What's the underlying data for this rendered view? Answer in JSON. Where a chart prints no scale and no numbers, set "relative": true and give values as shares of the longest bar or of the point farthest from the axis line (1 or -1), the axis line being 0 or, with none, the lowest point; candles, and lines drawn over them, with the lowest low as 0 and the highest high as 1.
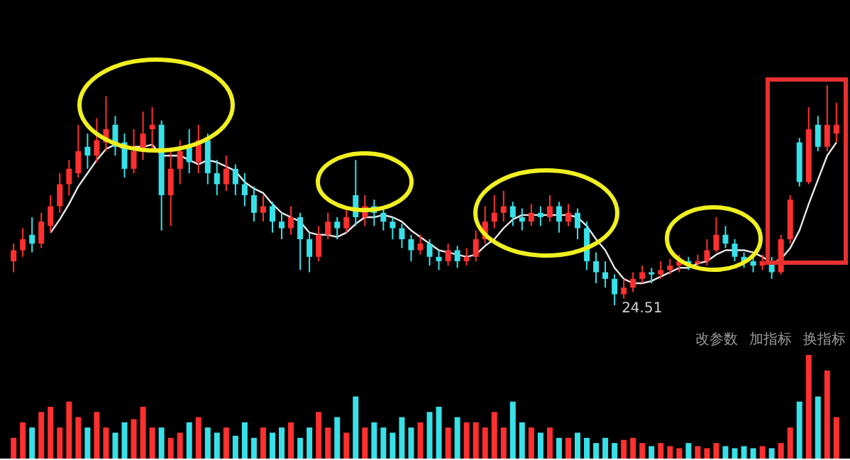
{
  "chart_data": [
    {
      "type": "candlestick",
      "relative": true,
      "categories": [
        null,
        null,
        null,
        null,
        null,
        null,
        null,
        null,
        null,
        null,
        null,
        null,
        null,
        null,
        null,
        null,
        null,
        null,
        null,
        null,
        null,
        null,
        null,
        null,
        null,
        null,
        null,
        null,
        null,
        null,
        null,
        null,
        null,
        null,
        null,
        null,
        null,
        null,
        null,
        null,
        null,
        null,
        null,
        null,
        null,
        null,
        null,
        null,
        null,
        null,
        null,
        null,
        null,
        null,
        null,
        null,
        null,
        null,
        null,
        null,
        null,
        null,
        null,
        null,
        null,
        null,
        null,
        null,
        null,
        null,
        null,
        null,
        null,
        null,
        null,
        null,
        null,
        null,
        null,
        null,
        null,
        null,
        null,
        null,
        null,
        null,
        null,
        null,
        null,
        null
      ],
      "ohlc": [
        [
          0.2,
          0.28,
          0.15,
          0.25
        ],
        [
          0.25,
          0.35,
          0.22,
          0.3
        ],
        [
          0.32,
          0.4,
          0.24,
          0.28
        ],
        [
          0.28,
          0.42,
          0.26,
          0.38
        ],
        [
          0.36,
          0.5,
          0.33,
          0.45
        ],
        [
          0.45,
          0.6,
          0.42,
          0.55
        ],
        [
          0.55,
          0.66,
          0.5,
          0.62
        ],
        [
          0.6,
          0.82,
          0.58,
          0.7
        ],
        [
          0.72,
          0.78,
          0.62,
          0.68
        ],
        [
          0.68,
          0.85,
          0.65,
          0.75
        ],
        [
          0.74,
          0.95,
          0.7,
          0.8
        ],
        [
          0.82,
          0.86,
          0.68,
          0.72
        ],
        [
          0.74,
          0.78,
          0.58,
          0.62
        ],
        [
          0.62,
          0.8,
          0.6,
          0.7
        ],
        [
          0.7,
          0.88,
          0.66,
          0.78
        ],
        [
          0.8,
          0.9,
          0.7,
          0.82
        ],
        [
          0.82,
          0.84,
          0.34,
          0.5
        ],
        [
          0.5,
          0.7,
          0.36,
          0.62
        ],
        [
          0.62,
          0.75,
          0.55,
          0.7
        ],
        [
          0.72,
          0.8,
          0.6,
          0.65
        ],
        [
          0.65,
          0.82,
          0.6,
          0.75
        ],
        [
          0.75,
          0.78,
          0.55,
          0.6
        ],
        [
          0.6,
          0.66,
          0.5,
          0.55
        ],
        [
          0.55,
          0.68,
          0.52,
          0.62
        ],
        [
          0.62,
          0.64,
          0.5,
          0.55
        ],
        [
          0.55,
          0.6,
          0.45,
          0.5
        ],
        [
          0.5,
          0.54,
          0.38,
          0.42
        ],
        [
          0.42,
          0.5,
          0.38,
          0.45
        ],
        [
          0.45,
          0.47,
          0.33,
          0.38
        ],
        [
          0.38,
          0.42,
          0.3,
          0.35
        ],
        [
          0.35,
          0.45,
          0.32,
          0.4
        ],
        [
          0.4,
          0.42,
          0.16,
          0.3
        ],
        [
          0.3,
          0.33,
          0.15,
          0.22
        ],
        [
          0.22,
          0.36,
          0.2,
          0.32
        ],
        [
          0.32,
          0.42,
          0.3,
          0.38
        ],
        [
          0.38,
          0.4,
          0.3,
          0.35
        ],
        [
          0.35,
          0.44,
          0.33,
          0.4
        ],
        [
          0.5,
          0.66,
          0.36,
          0.4
        ],
        [
          0.4,
          0.5,
          0.36,
          0.45
        ],
        [
          0.45,
          0.48,
          0.36,
          0.42
        ],
        [
          0.42,
          0.45,
          0.34,
          0.38
        ],
        [
          0.38,
          0.4,
          0.3,
          0.35
        ],
        [
          0.35,
          0.37,
          0.26,
          0.3
        ],
        [
          0.3,
          0.32,
          0.2,
          0.25
        ],
        [
          0.25,
          0.32,
          0.23,
          0.28
        ],
        [
          0.28,
          0.3,
          0.18,
          0.22
        ],
        [
          0.22,
          0.25,
          0.16,
          0.2
        ],
        [
          0.2,
          0.28,
          0.18,
          0.25
        ],
        [
          0.25,
          0.27,
          0.17,
          0.2
        ],
        [
          0.2,
          0.26,
          0.18,
          0.22
        ],
        [
          0.22,
          0.34,
          0.2,
          0.3
        ],
        [
          0.3,
          0.45,
          0.28,
          0.38
        ],
        [
          0.38,
          0.5,
          0.35,
          0.42
        ],
        [
          0.42,
          0.52,
          0.38,
          0.45
        ],
        [
          0.45,
          0.47,
          0.36,
          0.4
        ],
        [
          0.4,
          0.44,
          0.34,
          0.38
        ],
        [
          0.38,
          0.46,
          0.36,
          0.42
        ],
        [
          0.42,
          0.45,
          0.36,
          0.4
        ],
        [
          0.4,
          0.5,
          0.38,
          0.45
        ],
        [
          0.45,
          0.47,
          0.33,
          0.38
        ],
        [
          0.38,
          0.46,
          0.36,
          0.42
        ],
        [
          0.42,
          0.44,
          0.3,
          0.35
        ],
        [
          0.35,
          0.38,
          0.16,
          0.2
        ],
        [
          0.2,
          0.24,
          0.1,
          0.15
        ],
        [
          0.15,
          0.2,
          0.08,
          0.12
        ],
        [
          0.12,
          0.14,
          0,
          0.05
        ],
        [
          0.05,
          0.12,
          0.03,
          0.08
        ],
        [
          0.08,
          0.15,
          0.06,
          0.12
        ],
        [
          0.12,
          0.18,
          0.1,
          0.15
        ],
        [
          0.15,
          0.17,
          0.1,
          0.14
        ],
        [
          0.14,
          0.2,
          0.12,
          0.16
        ],
        [
          0.16,
          0.21,
          0.14,
          0.18
        ],
        [
          0.18,
          0.23,
          0.15,
          0.2
        ],
        [
          0.2,
          0.22,
          0.16,
          0.19
        ],
        [
          0.19,
          0.23,
          0.17,
          0.2
        ],
        [
          0.2,
          0.3,
          0.18,
          0.25
        ],
        [
          0.25,
          0.4,
          0.24,
          0.32
        ],
        [
          0.32,
          0.36,
          0.26,
          0.28
        ],
        [
          0.28,
          0.3,
          0.2,
          0.22
        ],
        [
          0.22,
          0.24,
          0.17,
          0.2
        ],
        [
          0.2,
          0.22,
          0.15,
          0.18
        ],
        [
          0.18,
          0.23,
          0.16,
          0.2
        ],
        [
          0.2,
          0.22,
          0.12,
          0.15
        ],
        [
          0.15,
          0.32,
          0.14,
          0.3
        ],
        [
          0.3,
          0.5,
          0.28,
          0.48
        ],
        [
          0.74,
          0.76,
          0.54,
          0.56
        ],
        [
          0.56,
          0.9,
          0.55,
          0.8
        ],
        [
          0.82,
          0.86,
          0.7,
          0.72
        ],
        [
          0.72,
          1.0,
          0.7,
          0.82
        ],
        [
          0.78,
          0.92,
          0.74,
          0.82
        ]
      ],
      "colors": [
        "#ff3030",
        "#ff3030",
        "#38e0e8",
        "#ff3030",
        "#ff3030",
        "#ff3030",
        "#ff3030",
        "#ff3030",
        "#38e0e8",
        "#ff3030",
        "#ff3030",
        "#38e0e8",
        "#38e0e8",
        "#ff3030",
        "#ff3030",
        "#ff3030",
        "#38e0e8",
        "#ff3030",
        "#ff3030",
        "#38e0e8",
        "#ff3030",
        "#38e0e8",
        "#38e0e8",
        "#ff3030",
        "#38e0e8",
        "#38e0e8",
        "#38e0e8",
        "#ff3030",
        "#38e0e8",
        "#38e0e8",
        "#ff3030",
        "#38e0e8",
        "#38e0e8",
        "#ff3030",
        "#ff3030",
        "#38e0e8",
        "#ff3030",
        "#38e0e8",
        "#ff3030",
        "#38e0e8",
        "#38e0e8",
        "#38e0e8",
        "#38e0e8",
        "#38e0e8",
        "#ff3030",
        "#38e0e8",
        "#38e0e8",
        "#ff3030",
        "#38e0e8",
        "#ff3030",
        "#ff3030",
        "#ff3030",
        "#ff3030",
        "#ff3030",
        "#38e0e8",
        "#38e0e8",
        "#ff3030",
        "#38e0e8",
        "#ff3030",
        "#38e0e8",
        "#ff3030",
        "#38e0e8",
        "#38e0e8",
        "#38e0e8",
        "#38e0e8",
        "#38e0e8",
        "#ff3030",
        "#ff3030",
        "#ff3030",
        "#38e0e8",
        "#ff3030",
        "#ff3030",
        "#ff3030",
        "#38e0e8",
        "#ff3030",
        "#ff3030",
        "#ff3030",
        "#38e0e8",
        "#38e0e8",
        "#38e0e8",
        "#38e0e8",
        "#ff3030",
        "#38e0e8",
        "#ff3030",
        "#ff3030",
        "#38e0e8",
        "#ff3030",
        "#38e0e8",
        "#ff3030",
        "#ff3030"
      ],
      "series": [
        {
          "type": "line",
          "color": "#e8e8e8",
          "values": [
            null,
            null,
            null,
            null,
            0.33,
            0.39,
            0.46,
            0.54,
            0.6,
            0.66,
            0.71,
            0.73,
            0.71,
            0.72,
            0.72,
            0.73,
            0.68,
            0.68,
            0.68,
            0.66,
            0.64,
            0.66,
            0.65,
            0.63,
            0.61,
            0.56,
            0.53,
            0.51,
            0.46,
            0.42,
            0.4,
            0.38,
            0.33,
            0.32,
            0.32,
            0.31,
            0.33,
            0.37,
            0.4,
            0.4,
            0.41,
            0.4,
            0.38,
            0.34,
            0.31,
            0.28,
            0.25,
            0.24,
            0.23,
            0.22,
            0.23,
            0.27,
            0.3,
            0.35,
            0.39,
            0.41,
            0.41,
            0.41,
            0.41,
            0.41,
            0.41,
            0.4,
            0.36,
            0.3,
            0.25,
            0.17,
            0.12,
            0.1,
            0.1,
            0.11,
            0.13,
            0.15,
            0.17,
            0.17,
            0.19,
            0.2,
            0.23,
            0.25,
            0.25,
            0.25,
            0.24,
            0.22,
            0.19,
            0.21,
            0.26,
            0.34,
            0.46,
            0.57,
            0.68,
            0.74
          ]
        }
      ],
      "annotations": [
        "24.51"
      ]
    },
    {
      "type": "bar",
      "relative": true,
      "categories": [
        null,
        null,
        null,
        null,
        null,
        null,
        null,
        null,
        null,
        null,
        null,
        null,
        null,
        null,
        null,
        null,
        null,
        null,
        null,
        null,
        null,
        null,
        null,
        null,
        null,
        null,
        null,
        null,
        null,
        null,
        null,
        null,
        null,
        null,
        null,
        null,
        null,
        null,
        null,
        null,
        null,
        null,
        null,
        null,
        null,
        null,
        null,
        null,
        null,
        null,
        null,
        null,
        null,
        null,
        null,
        null,
        null,
        null,
        null,
        null,
        null,
        null,
        null,
        null,
        null,
        null,
        null,
        null,
        null,
        null,
        null,
        null,
        null,
        null,
        null,
        null,
        null,
        null,
        null,
        null,
        null,
        null,
        null,
        null,
        null,
        null,
        null,
        null,
        null,
        null
      ],
      "values": [
        0.2,
        0.35,
        0.3,
        0.45,
        0.5,
        0.3,
        0.55,
        0.4,
        0.3,
        0.45,
        0.3,
        0.25,
        0.35,
        0.38,
        0.5,
        0.3,
        0.3,
        0.2,
        0.25,
        0.35,
        0.4,
        0.3,
        0.25,
        0.3,
        0.22,
        0.35,
        0.2,
        0.3,
        0.25,
        0.3,
        0.35,
        0.2,
        0.3,
        0.45,
        0.3,
        0.4,
        0.25,
        0.6,
        0.3,
        0.35,
        0.3,
        0.25,
        0.4,
        0.3,
        0.35,
        0.45,
        0.5,
        0.3,
        0.4,
        0.35,
        0.35,
        0.3,
        0.45,
        0.3,
        0.55,
        0.35,
        0.3,
        0.25,
        0.3,
        0.2,
        0.2,
        0.25,
        0.2,
        0.15,
        0.2,
        0.15,
        0.18,
        0.2,
        0.15,
        0.12,
        0.15,
        0.12,
        0.1,
        0.15,
        0.12,
        0.1,
        0.15,
        0.12,
        0.1,
        0.12,
        0.1,
        0.12,
        0.1,
        0.15,
        0.3,
        0.55,
        1.0,
        0.6,
        0.85,
        0.4
      ],
      "colors": [
        "#ff3030",
        "#ff3030",
        "#38e0e8",
        "#ff3030",
        "#ff3030",
        "#ff3030",
        "#ff3030",
        "#ff3030",
        "#38e0e8",
        "#ff3030",
        "#ff3030",
        "#38e0e8",
        "#38e0e8",
        "#ff3030",
        "#ff3030",
        "#ff3030",
        "#38e0e8",
        "#ff3030",
        "#ff3030",
        "#38e0e8",
        "#ff3030",
        "#38e0e8",
        "#38e0e8",
        "#ff3030",
        "#38e0e8",
        "#38e0e8",
        "#38e0e8",
        "#ff3030",
        "#38e0e8",
        "#38e0e8",
        "#ff3030",
        "#38e0e8",
        "#38e0e8",
        "#ff3030",
        "#ff3030",
        "#38e0e8",
        "#ff3030",
        "#38e0e8",
        "#ff3030",
        "#38e0e8",
        "#38e0e8",
        "#38e0e8",
        "#38e0e8",
        "#38e0e8",
        "#ff3030",
        "#38e0e8",
        "#38e0e8",
        "#ff3030",
        "#38e0e8",
        "#ff3030",
        "#ff3030",
        "#ff3030",
        "#ff3030",
        "#ff3030",
        "#38e0e8",
        "#38e0e8",
        "#ff3030",
        "#38e0e8",
        "#ff3030",
        "#38e0e8",
        "#ff3030",
        "#38e0e8",
        "#38e0e8",
        "#38e0e8",
        "#38e0e8",
        "#38e0e8",
        "#ff3030",
        "#ff3030",
        "#ff3030",
        "#38e0e8",
        "#ff3030",
        "#ff3030",
        "#ff3030",
        "#38e0e8",
        "#ff3030",
        "#ff3030",
        "#ff3030",
        "#38e0e8",
        "#38e0e8",
        "#38e0e8",
        "#38e0e8",
        "#ff3030",
        "#38e0e8",
        "#ff3030",
        "#ff3030",
        "#38e0e8",
        "#ff3030",
        "#38e0e8",
        "#ff3030",
        "#ff3030"
      ],
      "annotations": [
        "改参数",
        "加指标",
        "换指标"
      ]
    }
  ]
}
